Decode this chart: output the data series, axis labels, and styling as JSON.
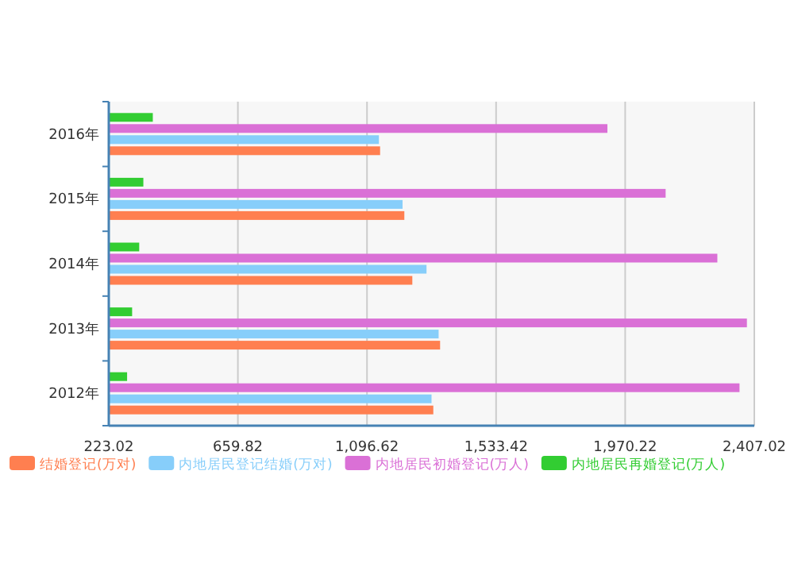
{
  "chart_data": {
    "type": "bar",
    "orientation": "horizontal",
    "categories": [
      "2016年",
      "2015年",
      "2014年",
      "2013年",
      "2012年"
    ],
    "series": [
      {
        "name": "结婚登记(万对)",
        "color": "#ff7f50",
        "values": [
          1141,
          1223,
          1250,
          1344,
          1321
        ]
      },
      {
        "name": "内地居民登记结婚(万对)",
        "color": "#87cefa",
        "values": [
          1137,
          1217,
          1298,
          1339,
          1315
        ]
      },
      {
        "name": "内地居民初婚登记(万人)",
        "color": "#da70d6",
        "values": [
          1910,
          2107,
          2282,
          2382,
          2357
        ]
      },
      {
        "name": "内地居民再婚登记(万人)",
        "color": "#32cd32",
        "values": [
          372,
          340,
          326,
          302,
          285
        ]
      }
    ],
    "xlim": [
      223.02,
      2407.02
    ],
    "xticks": [
      223.02,
      659.82,
      {
        "value": 1096.62,
        "label": "1,096.62"
      },
      {
        "value": 1533.42,
        "label": "1,533.42"
      },
      {
        "value": 1970.22,
        "label": "1,970.22"
      },
      {
        "value": 2407.02,
        "label": "2,407.02"
      }
    ],
    "grid": "x",
    "legend": "bottom"
  }
}
